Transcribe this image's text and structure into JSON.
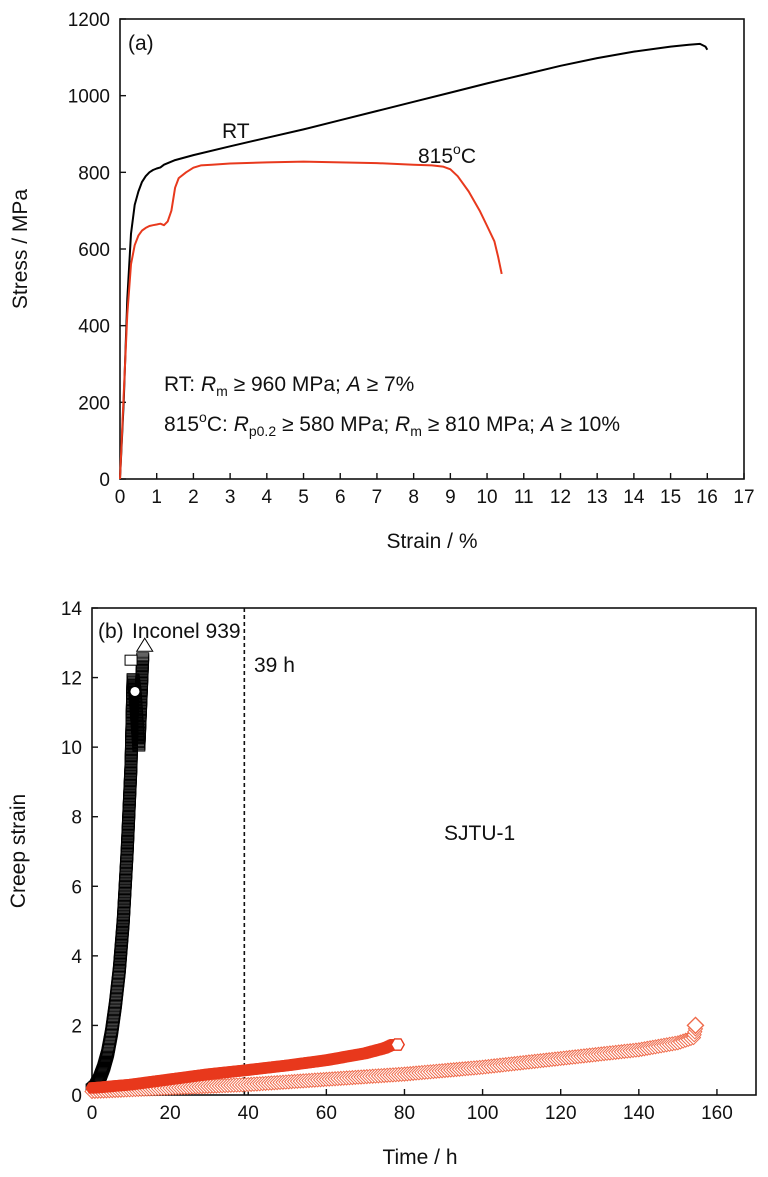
{
  "colors": {
    "black": "#000000",
    "red": "#e8391d",
    "light_red": "#ef6a4a"
  },
  "chart_data": [
    {
      "panel_label": "(a)",
      "type": "line",
      "xlabel": "Strain / %",
      "ylabel": "Stress / MPa",
      "xlim": [
        0,
        17
      ],
      "ylim": [
        0,
        1200
      ],
      "xticks": [
        "0",
        "1",
        "2",
        "3",
        "4",
        "5",
        "6",
        "7",
        "8",
        "9",
        "10",
        "11",
        "12",
        "13",
        "14",
        "15",
        "16",
        "17"
      ],
      "yticks": [
        "0",
        "200",
        "400",
        "600",
        "800",
        "1000",
        "1200"
      ],
      "series": [
        {
          "name": "RT",
          "color": "#000000",
          "x": [
            0,
            0.1,
            0.2,
            0.3,
            0.4,
            0.5,
            0.6,
            0.7,
            0.8,
            0.9,
            1.0,
            1.1,
            1.2,
            1.5,
            2,
            3,
            4,
            5,
            6,
            7,
            8,
            9,
            10,
            11,
            12,
            13,
            14,
            15,
            15.5,
            15.8,
            15.95,
            16.0
          ],
          "y": [
            0,
            200,
            470,
            640,
            715,
            750,
            775,
            790,
            800,
            806,
            810,
            813,
            820,
            832,
            845,
            868,
            890,
            912,
            936,
            960,
            984,
            1008,
            1032,
            1055,
            1078,
            1098,
            1115,
            1128,
            1133,
            1135,
            1128,
            1120
          ]
        },
        {
          "name": "815°C",
          "color": "#e8391d",
          "x": [
            0,
            0.1,
            0.2,
            0.3,
            0.4,
            0.5,
            0.6,
            0.7,
            0.8,
            0.9,
            1.0,
            1.1,
            1.2,
            1.3,
            1.4,
            1.5,
            1.6,
            1.8,
            2.0,
            2.2,
            2.5,
            3,
            4,
            5,
            6,
            7,
            8,
            8.5,
            8.8,
            9.0,
            9.2,
            9.5,
            9.8,
            10.0,
            10.2,
            10.3,
            10.4
          ],
          "y": [
            0,
            220,
            430,
            560,
            610,
            635,
            648,
            655,
            660,
            662,
            664,
            666,
            662,
            672,
            700,
            760,
            785,
            800,
            812,
            818,
            820,
            823,
            826,
            828,
            826,
            824,
            820,
            818,
            815,
            808,
            790,
            750,
            700,
            660,
            620,
            580,
            535
          ]
        }
      ],
      "curve_labels": [
        "RT",
        "815°C"
      ],
      "spec_lines": [
        {
          "prefix": "RT: ",
          "parts": [
            [
              "R",
              "m"
            ],
            " ≥ 960 MPa; ",
            [
              "A",
              ""
            ],
            " ≥ 7%"
          ]
        },
        {
          "prefix": "815°C: ",
          "parts": [
            [
              "R",
              "p0.2"
            ],
            " ≥ 580 MPa; ",
            [
              "R",
              "m"
            ],
            " ≥ 810 MPa; ",
            [
              "A",
              ""
            ],
            " ≥ 10%"
          ]
        }
      ],
      "legend": "none"
    },
    {
      "panel_label": "(b)",
      "type": "scatter",
      "xlabel": "Time / h",
      "ylabel": "Creep strain",
      "xlim": [
        0,
        170
      ],
      "ylim": [
        0,
        14
      ],
      "xticks": [
        "0",
        "20",
        "40",
        "60",
        "80",
        "100",
        "120",
        "140",
        "160"
      ],
      "yticks": [
        "0",
        "2",
        "4",
        "6",
        "8",
        "10",
        "12",
        "14"
      ],
      "reference_line": {
        "x": 39,
        "label": "39 h",
        "style": "dashed"
      },
      "series": [
        {
          "name": "Inconel 939",
          "marker": "square/circle/triangle",
          "color": "#000000",
          "points": [
            [
              0,
              0.2
            ],
            [
              1,
              0.3
            ],
            [
              2,
              0.5
            ],
            [
              3,
              0.8
            ],
            [
              4,
              1.2
            ],
            [
              5,
              1.8
            ],
            [
              6,
              2.6
            ],
            [
              7,
              3.6
            ],
            [
              8,
              5.0
            ],
            [
              9,
              7.0
            ],
            [
              10,
              9.5
            ],
            [
              10.5,
              12.0
            ],
            [
              11,
              11.6
            ],
            [
              12,
              10.0
            ],
            [
              13,
              12.6
            ]
          ],
          "end_markers": [
            [
              10,
              12.5
            ],
            [
              11,
              11.6
            ],
            [
              13.5,
              12.9
            ]
          ]
        },
        {
          "name": "SJTU-1",
          "marker": "hexagon",
          "color": "#e8391d",
          "points": [
            [
              0,
              0.2
            ],
            [
              10,
              0.3
            ],
            [
              20,
              0.45
            ],
            [
              30,
              0.6
            ],
            [
              40,
              0.72
            ],
            [
              50,
              0.85
            ],
            [
              60,
              1.0
            ],
            [
              70,
              1.2
            ],
            [
              75,
              1.35
            ],
            [
              77,
              1.45
            ]
          ],
          "end_markers": [
            [
              77.5,
              1.45
            ]
          ]
        },
        {
          "name": "SJTU-1",
          "marker": "diamond",
          "color": "#ef6a4a",
          "points": [
            [
              0,
              0.1
            ],
            [
              20,
              0.2
            ],
            [
              40,
              0.3
            ],
            [
              60,
              0.45
            ],
            [
              80,
              0.6
            ],
            [
              100,
              0.8
            ],
            [
              120,
              1.05
            ],
            [
              140,
              1.3
            ],
            [
              150,
              1.5
            ],
            [
              154,
              1.65
            ],
            [
              154.5,
              1.9
            ]
          ],
          "end_markers": [
            [
              154.5,
              2.0
            ]
          ]
        }
      ],
      "series_labels": [
        "Inconel 939",
        "SJTU-1"
      ],
      "legend": "none"
    }
  ]
}
